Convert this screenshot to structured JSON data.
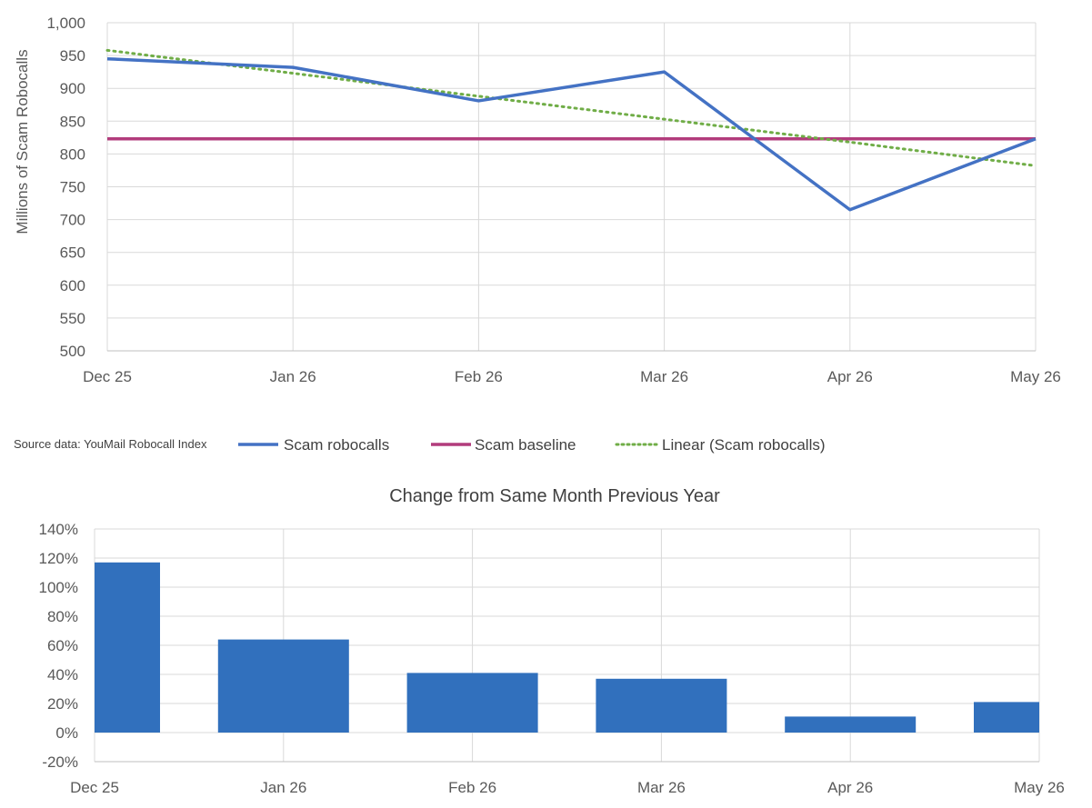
{
  "chart_data": [
    {
      "type": "line",
      "categories": [
        "Dec 25",
        "Jan 26",
        "Feb 26",
        "Mar 26",
        "Apr 26",
        "May 26"
      ],
      "ylabel": "Millions of Scam Robocalls",
      "ylim": [
        500,
        1000
      ],
      "yticks": [
        "500",
        "550",
        "600",
        "650",
        "700",
        "750",
        "800",
        "850",
        "900",
        "950",
        "1,000"
      ],
      "grid": true,
      "legend_position": "bottom",
      "series": [
        {
          "name": "Scam robocalls",
          "values": [
            945,
            932,
            881,
            925,
            715,
            823
          ],
          "color": "#4472C4",
          "style": "solid"
        },
        {
          "name": "Scam baseline",
          "values": [
            823,
            823,
            823,
            823,
            823,
            823
          ],
          "color": "#B23C7C",
          "style": "solid"
        },
        {
          "name": "Linear (Scam robocalls)",
          "values": [
            958,
            923,
            888,
            853,
            818,
            782
          ],
          "color": "#70AD47",
          "style": "dotted"
        }
      ]
    },
    {
      "type": "bar",
      "title": "Change from Same Month Previous Year",
      "categories": [
        "Dec 25",
        "Jan 26",
        "Feb 26",
        "Mar 26",
        "Apr 26",
        "May 26"
      ],
      "values": [
        117,
        64,
        41,
        37,
        11,
        21
      ],
      "ylim": [
        -20,
        140
      ],
      "yticks": [
        "-20%",
        "0%",
        "20%",
        "40%",
        "60%",
        "80%",
        "100%",
        "120%",
        "140%"
      ],
      "grid": true,
      "color": "#3170BD"
    }
  ],
  "source_note": "Source data: YouMail Robocall Index"
}
